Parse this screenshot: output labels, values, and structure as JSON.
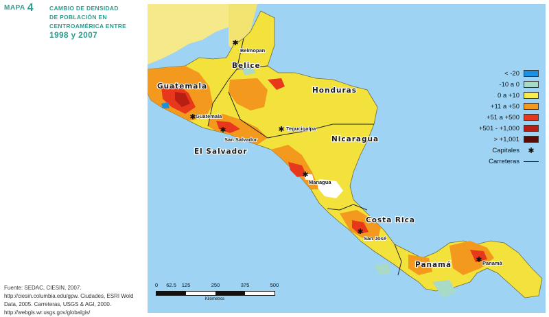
{
  "header": {
    "map_word": "MAPA",
    "map_number": "4",
    "title_line1": "CAMBIO DE DENSIDAD",
    "title_line2": "DE POBLACIÓN EN",
    "title_line3": "CENTROAMÉRICA ENTRE",
    "title_years": "1998 y 2007"
  },
  "source": {
    "text": "Fuente: SEDAC, CIESIN, 2007. http://ciesin.columbia.edu/gpw. Ciudades, ESRI Wold Data, 2005. Carreteras, USGS & AGI, 2000. http://webgis.wr.usgs.gov/globalgis/"
  },
  "map": {
    "countries": {
      "belice": "Belice",
      "guatemala": "Guatemala",
      "honduras": "Honduras",
      "el_salvador": "El Salvador",
      "nicaragua": "Nicaragua",
      "costa_rica": "Costa Rica",
      "panama": "Panamá"
    },
    "capitals": {
      "belmopan": "Belmopan",
      "guatemala": "Guatemala",
      "tegucigalpa": "Tegucigalpa",
      "san_salvador": "San Salvador",
      "managua": "Managua",
      "san_jose": "San José",
      "panama": "Panamá"
    }
  },
  "legend": {
    "items": [
      {
        "label": "< -20",
        "color": "#1e8fe0"
      },
      {
        "label": "-10 a 0",
        "color": "#a9d9c7"
      },
      {
        "label": "0 a +10",
        "color": "#f7ec4c"
      },
      {
        "label": "+11 a +50",
        "color": "#f39a1e"
      },
      {
        "label": "+51 a +500",
        "color": "#e8381b"
      },
      {
        "label": "+501 - +1,000",
        "color": "#b81e12"
      },
      {
        "label": "> +1,001",
        "color": "#5c0a06"
      }
    ],
    "capitals_label": "Capitales",
    "capitals_symbol": "✱",
    "roads_label": "Carreteras"
  },
  "scale": {
    "ticks": [
      "0",
      "62.5",
      "125",
      "250",
      "375",
      "500"
    ],
    "unit": "Kilómetros"
  }
}
